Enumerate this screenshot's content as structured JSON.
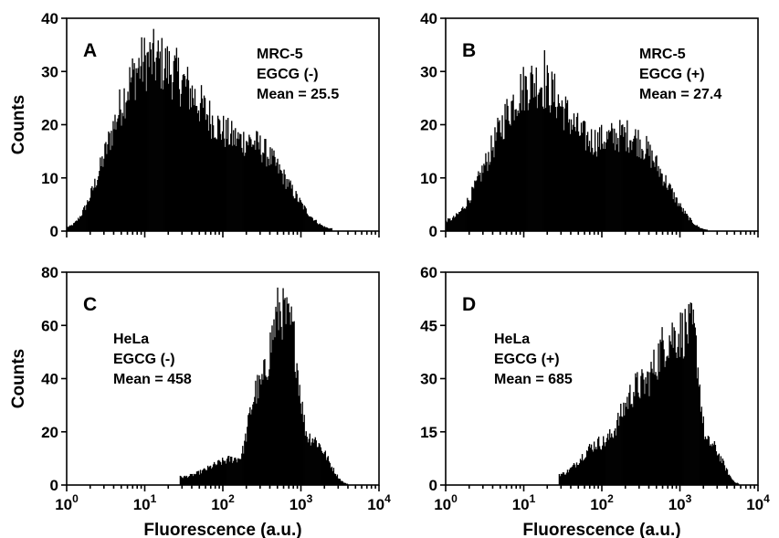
{
  "chart_data": [
    {
      "type": "bar",
      "panel_label": "A",
      "annotation": [
        "MRC-5",
        "EGCG (-)",
        "Mean = 25.5"
      ],
      "xlabel": "",
      "ylabel": "Counts",
      "x_scale": "log",
      "xlim": [
        1,
        10000
      ],
      "ylim": [
        0,
        40
      ],
      "yticks": [
        "0",
        "10",
        "20",
        "30",
        "40"
      ],
      "xticks": [],
      "peaks": [
        [
          0,
          0.8
        ],
        [
          1.06,
          32
        ],
        [
          2.28,
          17
        ],
        [
          3.4,
          0.5
        ]
      ],
      "peak_max": 38
    },
    {
      "type": "bar",
      "panel_label": "B",
      "annotation": [
        "MRC-5",
        "EGCG (+)",
        "Mean = 27.4"
      ],
      "xlabel": "",
      "ylabel": "",
      "x_scale": "log",
      "xlim": [
        1,
        10000
      ],
      "ylim": [
        0,
        40
      ],
      "yticks": [
        "0",
        "10",
        "20",
        "30",
        "40"
      ],
      "xticks": [],
      "peaks": [
        [
          0,
          2
        ],
        [
          1.15,
          28
        ],
        [
          1.9,
          17
        ],
        [
          2.3,
          18
        ],
        [
          3.35,
          0.3
        ]
      ],
      "peak_max": 34
    },
    {
      "type": "bar",
      "panel_label": "C",
      "annotation": [
        "HeLa",
        "EGCG (-)",
        "Mean = 458"
      ],
      "xlabel": "Fluorescence (a.u.)",
      "ylabel": "Counts",
      "x_scale": "log",
      "xlim": [
        1,
        10000
      ],
      "ylim": [
        0,
        80
      ],
      "yticks": [
        "0",
        "20",
        "40",
        "60",
        "80"
      ],
      "xticks": [
        {
          "base": "10",
          "exp": "0"
        },
        {
          "base": "10",
          "exp": "1"
        },
        {
          "base": "10",
          "exp": "2"
        },
        {
          "base": "10",
          "exp": "3"
        },
        {
          "base": "10",
          "exp": "4"
        }
      ],
      "peaks": [
        [
          1.45,
          3
        ],
        [
          2.2,
          10
        ],
        [
          2.45,
          36
        ],
        [
          2.75,
          66
        ],
        [
          2.85,
          60
        ],
        [
          3.1,
          18
        ],
        [
          3.6,
          0.5
        ]
      ],
      "peak_max": 74
    },
    {
      "type": "bar",
      "panel_label": "D",
      "annotation": [
        "HeLa",
        "EGCG (+)",
        "Mean = 685"
      ],
      "xlabel": "Fluorescence (a.u.)",
      "ylabel": "",
      "x_scale": "log",
      "xlim": [
        1,
        10000
      ],
      "ylim": [
        0,
        60
      ],
      "yticks": [
        "0",
        "15",
        "30",
        "45",
        "60"
      ],
      "xticks": [
        {
          "base": "10",
          "exp": "0"
        },
        {
          "base": "10",
          "exp": "1"
        },
        {
          "base": "10",
          "exp": "2"
        },
        {
          "base": "10",
          "exp": "3"
        },
        {
          "base": "10",
          "exp": "4"
        }
      ],
      "peaks": [
        [
          1.45,
          3
        ],
        [
          2.0,
          12
        ],
        [
          2.5,
          28
        ],
        [
          2.9,
          42
        ],
        [
          3.15,
          44
        ],
        [
          3.35,
          12
        ],
        [
          3.75,
          0.5
        ]
      ],
      "peak_max": 51
    }
  ]
}
